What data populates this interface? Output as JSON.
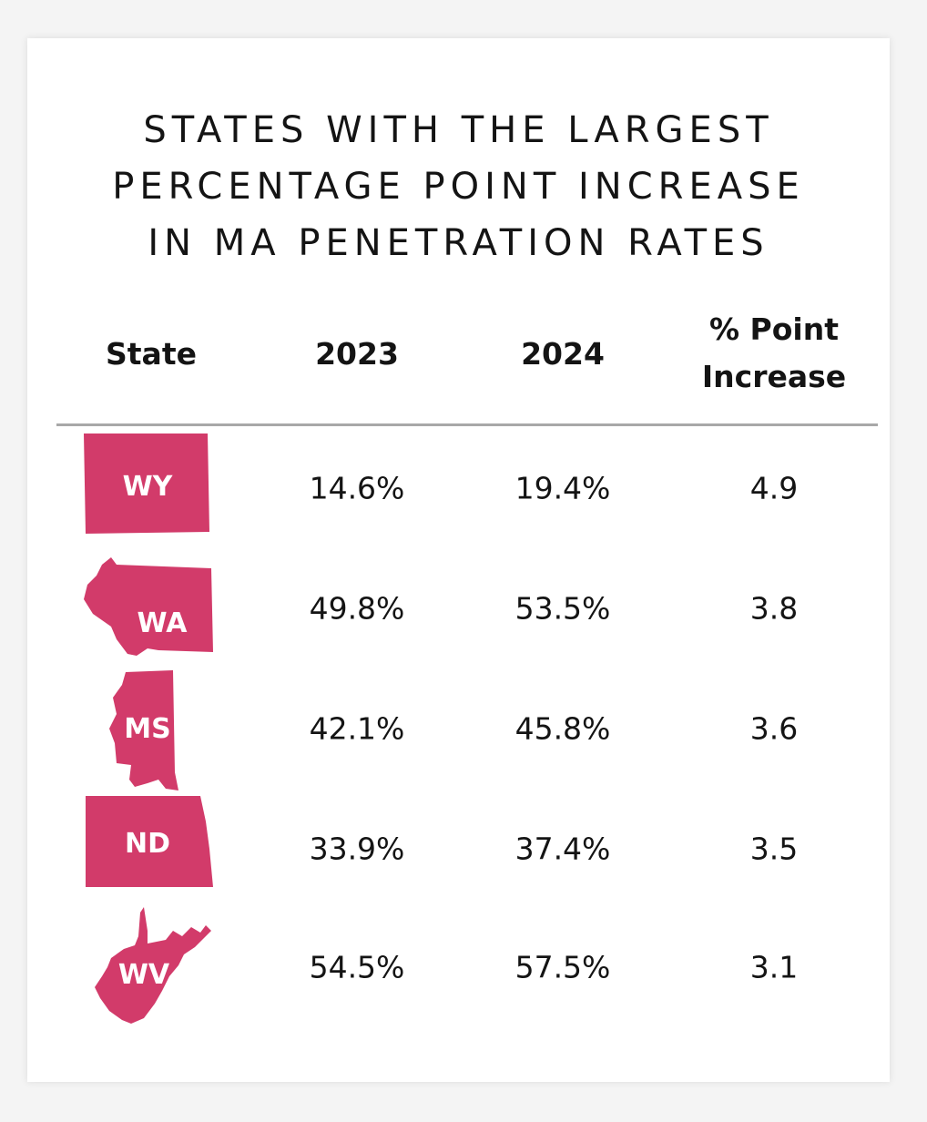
{
  "chart_data": {
    "type": "table",
    "title_lines": [
      "STATES WITH THE LARGEST",
      "PERCENTAGE POINT INCREASE",
      "IN MA PENETRATION RATES"
    ],
    "columns": {
      "state": "State",
      "y2023": "2023",
      "y2024": "2024",
      "increase_line1": "% Point",
      "increase_line2": "Increase"
    },
    "rows": [
      {
        "state": "WY",
        "y2023": "14.6%",
        "y2024": "19.4%",
        "increase": "4.9"
      },
      {
        "state": "WA",
        "y2023": "49.8%",
        "y2024": "53.5%",
        "increase": "3.8"
      },
      {
        "state": "MS",
        "y2023": "42.1%",
        "y2024": "45.8%",
        "increase": "3.6"
      },
      {
        "state": "ND",
        "y2023": "33.9%",
        "y2024": "37.4%",
        "increase": "3.5"
      },
      {
        "state": "WV",
        "y2023": "54.5%",
        "y2024": "57.5%",
        "increase": "3.1"
      }
    ],
    "colors": {
      "state_fill": "#d23b6a",
      "text": "#141414",
      "rule": "#a8a8a8"
    }
  }
}
